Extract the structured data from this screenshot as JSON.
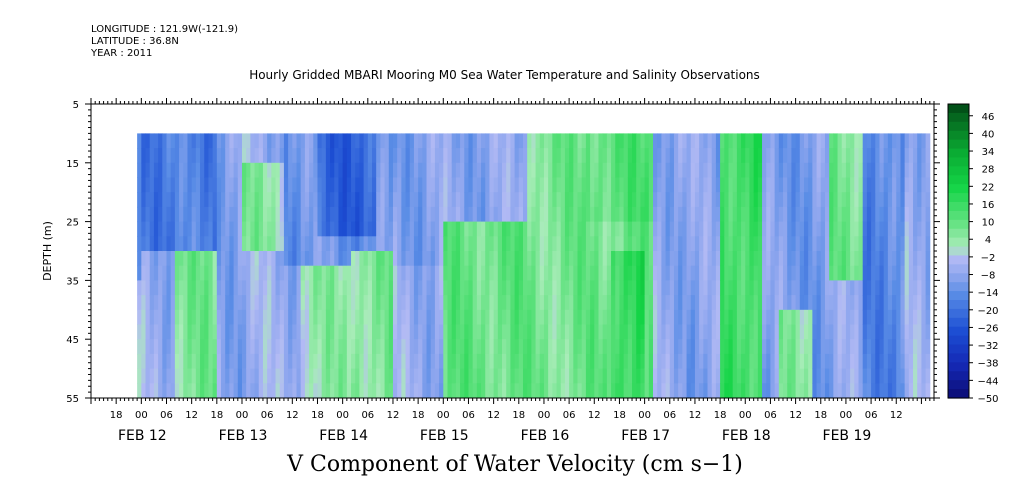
{
  "header": {
    "longitude": "LONGITUDE : 121.9W(-121.9)",
    "latitude": "LATITUDE : 36.8N",
    "year": "YEAR : 2011"
  },
  "chart_data": {
    "type": "heatmap",
    "title": "Hourly Gridded MBARI Mooring M0 Sea Water Temperature and Salinity Observations",
    "xlabel": "V Component of Water Velocity (cm s−1)",
    "ylabel": "DEPTH (m)",
    "ylim": [
      55,
      5
    ],
    "data_depth_range": [
      10,
      55
    ],
    "y_ticks": [
      "5",
      "15",
      "25",
      "35",
      "45",
      "55"
    ],
    "x_hour_ticks": [
      "18",
      "00",
      "06",
      "12",
      "18",
      "00",
      "06",
      "12",
      "18",
      "00",
      "06",
      "12",
      "18",
      "00",
      "06",
      "12",
      "18",
      "00",
      "06",
      "12",
      "18",
      "00",
      "06",
      "12",
      "18",
      "00",
      "06",
      "12",
      "18",
      "00",
      "06",
      "12"
    ],
    "x_day_labels": [
      "FEB 12",
      "FEB 13",
      "FEB 14",
      "FEB 15",
      "FEB 16",
      "FEB 17",
      "FEB 18",
      "FEB 19"
    ],
    "x_range": [
      "2011-02-12 12:00",
      "2011-02-19 21:00"
    ],
    "data_time_range": [
      "2011-02-12 23:00",
      "2011-02-19 20:00"
    ],
    "colorbar": {
      "labels": [
        "46",
        "40",
        "34",
        "28",
        "22",
        "16",
        "10",
        "4",
        "−2",
        "−8",
        "−14",
        "−20",
        "−26",
        "−32",
        "−38",
        "−44",
        "−50"
      ],
      "min": -50,
      "max": 50,
      "step": 3
    },
    "colors": {
      "negative_strong": "#1d50d4",
      "negative_mid": "#5a8de6",
      "negative_weak": "#aab6f2",
      "positive_weak": "#a8ecb8",
      "positive_mid": "#50df78",
      "positive_strong": "#14d446"
    },
    "regions": [
      {
        "t0": 0.0,
        "t1": 12.0,
        "d0": 10,
        "d1": 36,
        "v": -14
      },
      {
        "t0": 0.0,
        "t1": 12.0,
        "d0": 36,
        "d1": 55,
        "v": -5
      },
      {
        "t0": 2.0,
        "t1": 8.0,
        "d0": 36,
        "d1": 55,
        "v": 6
      },
      {
        "t0": 12.0,
        "t1": 30.0,
        "d0": 10,
        "d1": 30,
        "v": -17
      },
      {
        "t0": 20.0,
        "t1": 32.0,
        "d0": 30,
        "d1": 55,
        "v": 7
      },
      {
        "t0": 30.0,
        "t1": 36.0,
        "d0": 10,
        "d1": 55,
        "v": -8
      },
      {
        "t0": 36.0,
        "t1": 46.0,
        "d0": 14,
        "d1": 30,
        "v": 5
      },
      {
        "t0": 46.0,
        "t1": 72.0,
        "d0": 10,
        "d1": 32,
        "v": -12
      },
      {
        "t0": 54.0,
        "t1": 68.0,
        "d0": 10,
        "d1": 28,
        "v": -22
      },
      {
        "t0": 50.0,
        "t1": 64.0,
        "d0": 32,
        "d1": 55,
        "v": 4
      },
      {
        "t0": 62.0,
        "t1": 72.0,
        "d0": 30,
        "d1": 55,
        "v": 7
      },
      {
        "t0": 72.0,
        "t1": 84.0,
        "d0": 10,
        "d1": 32,
        "v": -9
      },
      {
        "t0": 72.0,
        "t1": 84.0,
        "d0": 32,
        "d1": 55,
        "v": -6
      },
      {
        "t0": 84.0,
        "t1": 104.0,
        "d0": 10,
        "d1": 25,
        "v": -8
      },
      {
        "t0": 84.0,
        "t1": 104.0,
        "d0": 25,
        "d1": 55,
        "v": 10
      },
      {
        "t0": 104.0,
        "t1": 118.0,
        "d0": 10,
        "d1": 55,
        "v": 8
      },
      {
        "t0": 118.0,
        "t1": 134.0,
        "d0": 10,
        "d1": 24,
        "v": 12
      },
      {
        "t0": 118.0,
        "t1": 134.0,
        "d0": 24,
        "d1": 55,
        "v": 9
      },
      {
        "t0": 124.0,
        "t1": 132.0,
        "d0": 30,
        "d1": 55,
        "v": 18
      },
      {
        "t0": 134.0,
        "t1": 142.0,
        "d0": 10,
        "d1": 55,
        "v": -7
      },
      {
        "t0": 142.0,
        "t1": 150.0,
        "d0": 10,
        "d1": 55,
        "v": -9
      },
      {
        "t0": 150.0,
        "t1": 160.0,
        "d0": 10,
        "d1": 55,
        "v": 16
      },
      {
        "t0": 160.0,
        "t1": 176.0,
        "d0": 10,
        "d1": 55,
        "v": -10
      },
      {
        "t0": 164.0,
        "t1": 172.0,
        "d0": 40,
        "d1": 55,
        "v": 5
      },
      {
        "t0": 176.0,
        "t1": 184.0,
        "d0": 10,
        "d1": 35,
        "v": 8
      },
      {
        "t0": 176.0,
        "t1": 184.0,
        "d0": 35,
        "d1": 55,
        "v": -8
      },
      {
        "t0": 184.0,
        "t1": 194.0,
        "d0": 10,
        "d1": 55,
        "v": -15
      },
      {
        "t0": 194.0,
        "t1": 201.0,
        "d0": 10,
        "d1": 55,
        "v": -6
      }
    ]
  }
}
